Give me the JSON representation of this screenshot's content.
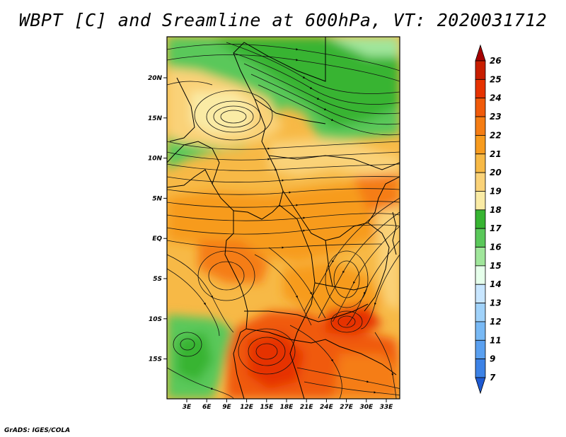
{
  "title": "WBPT [C] and Sreamline at 600hPa, VT: 2020031712",
  "footer": "GrADS: IGES/COLA",
  "map": {
    "lat_labels": [
      "20N",
      "15N",
      "10N",
      "5N",
      "EQ",
      "5S",
      "10S",
      "15S"
    ],
    "lon_labels": [
      "3E",
      "6E",
      "9E",
      "12E",
      "15E",
      "18E",
      "21E",
      "24E",
      "27E",
      "30E",
      "33E"
    ]
  },
  "colorbar": {
    "levels": [
      "26",
      "25",
      "24",
      "23",
      "22",
      "21",
      "20",
      "19",
      "18",
      "17",
      "16",
      "15",
      "14",
      "13",
      "12",
      "11",
      "9",
      "7"
    ],
    "colors": [
      "#a50000",
      "#c81e00",
      "#e63200",
      "#f05a0a",
      "#f57d14",
      "#f79b1e",
      "#f7b946",
      "#fad278",
      "#faeba5",
      "#37b432",
      "#5ac85a",
      "#a0e69b",
      "#e6ffeb",
      "#c8e6ff",
      "#a0d2fa",
      "#78b9f5",
      "#5aa0f0",
      "#3c82e6",
      "#1e5ad2"
    ]
  }
}
